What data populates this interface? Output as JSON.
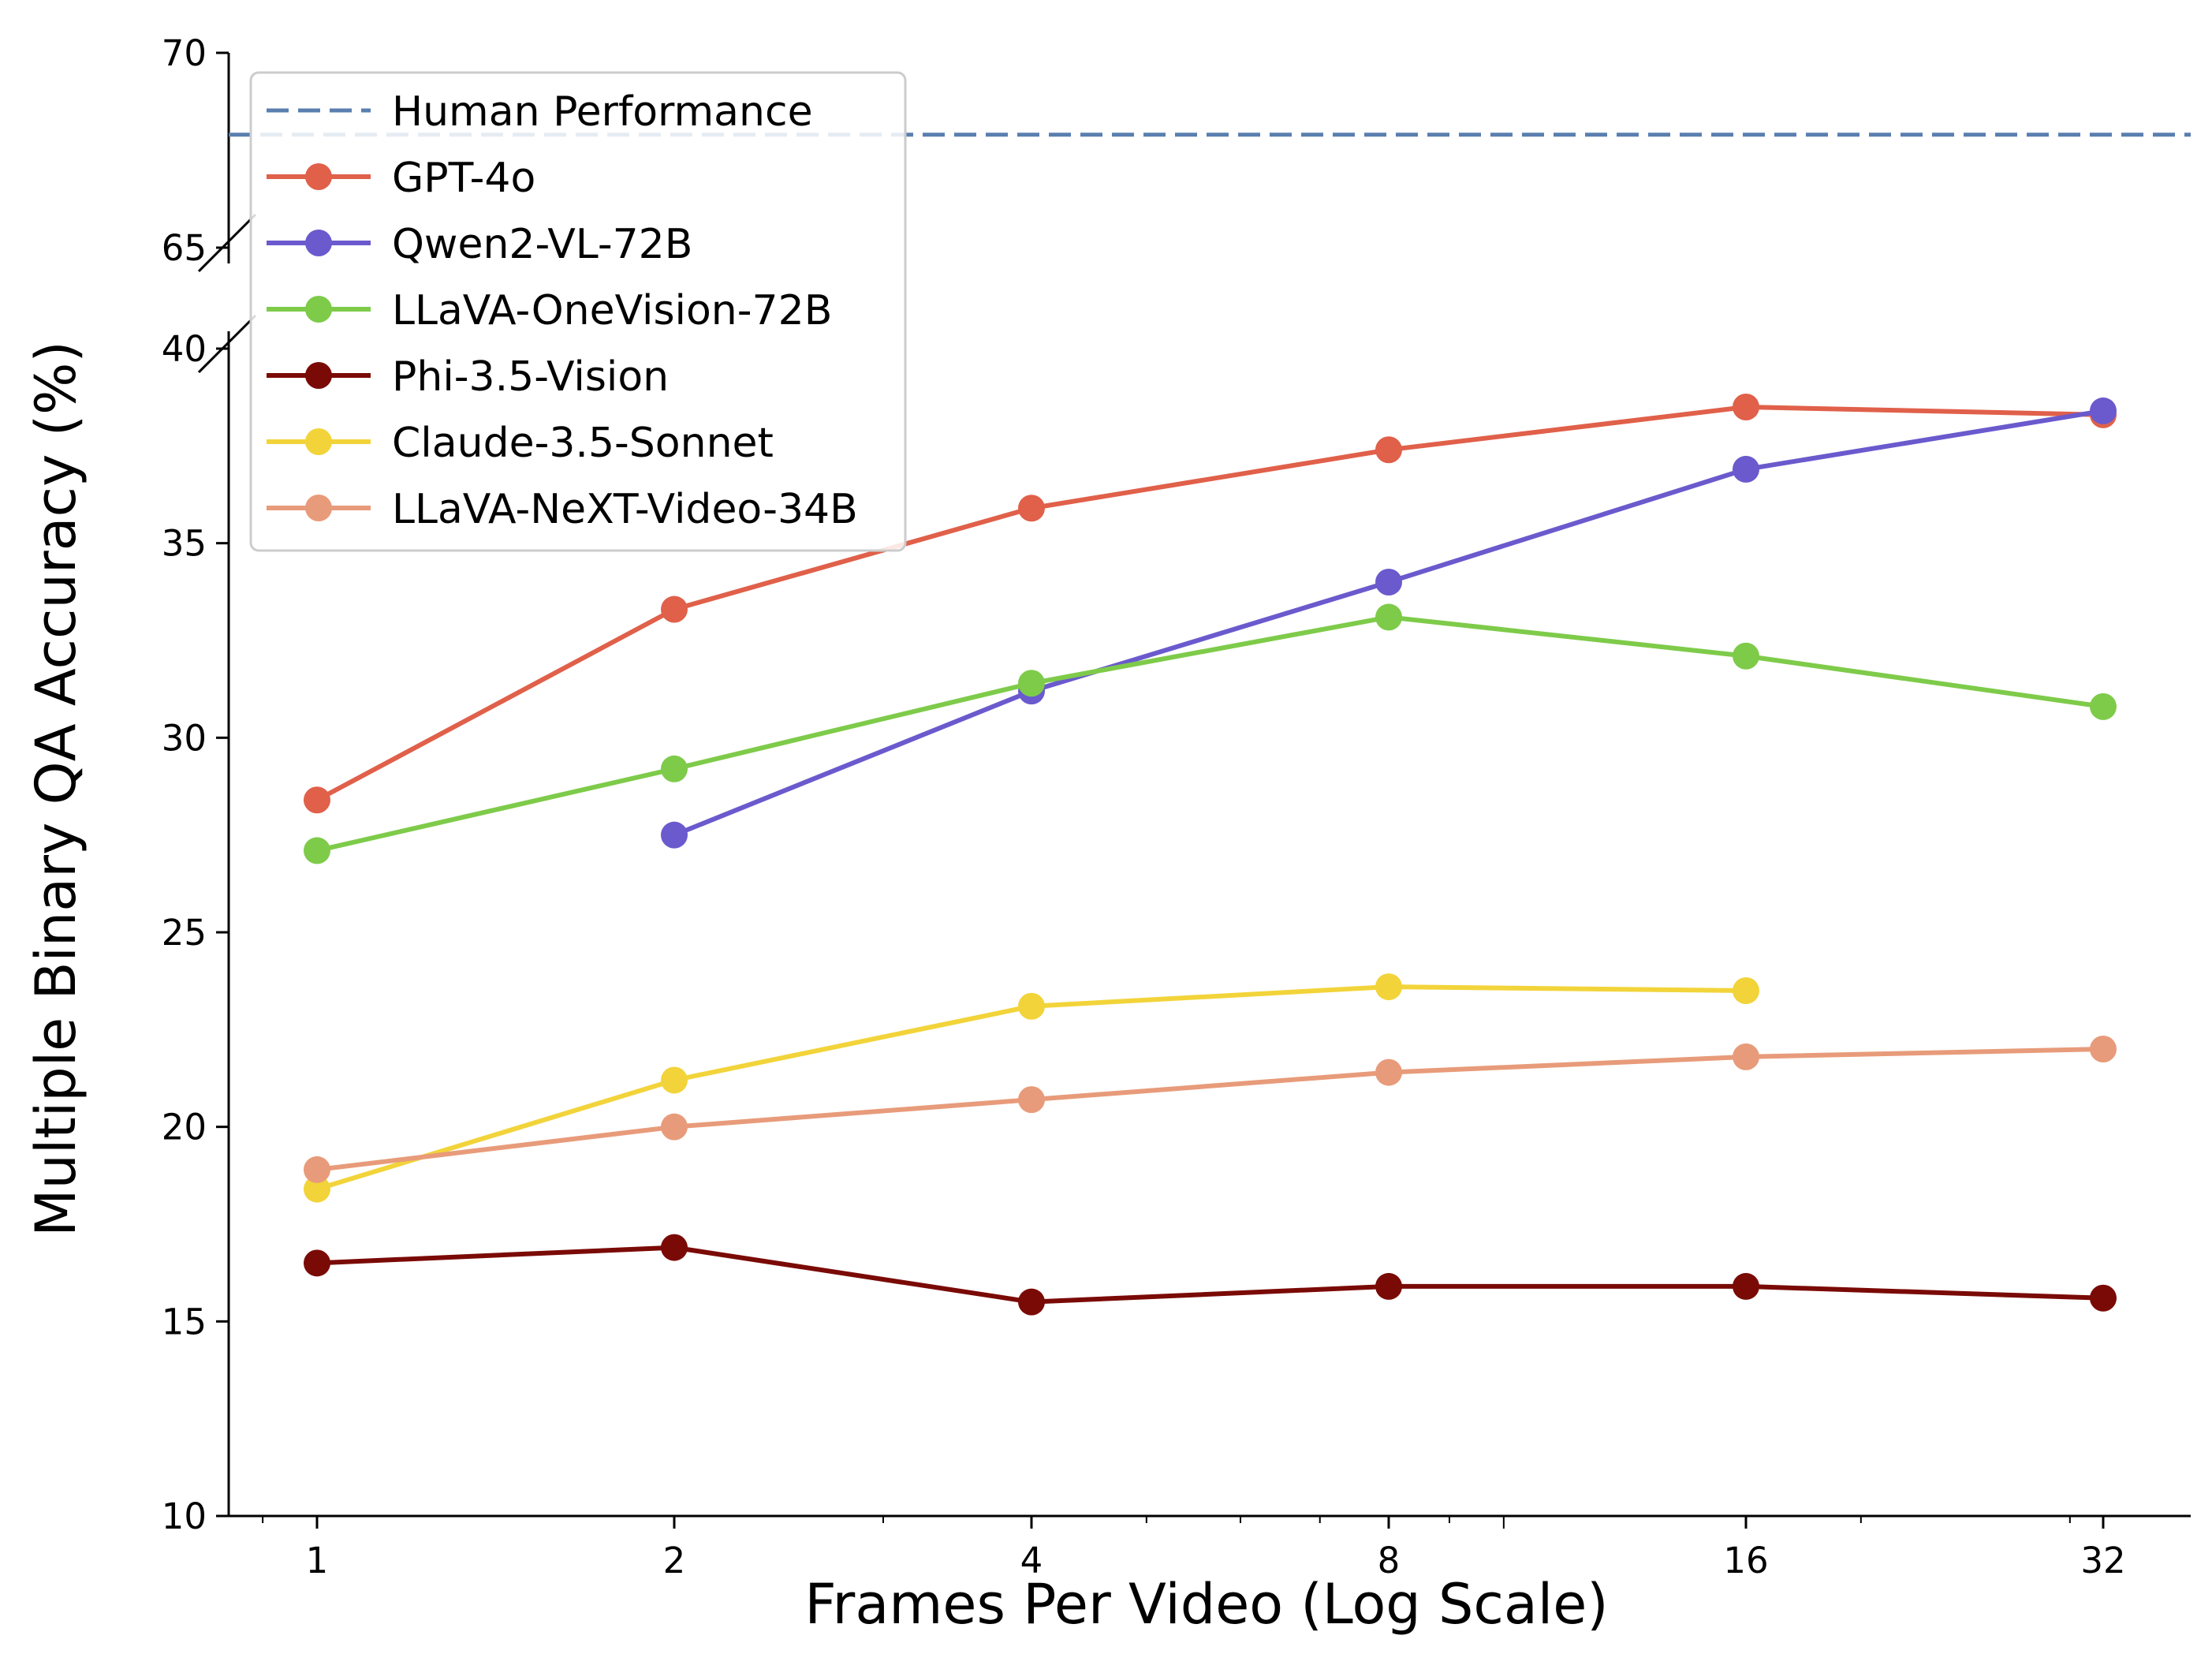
{
  "chart_data": {
    "type": "line",
    "xlabel": "Frames Per Video (Log Scale)",
    "ylabel": "Multiple Binary QA Accuracy (%)",
    "x_scale": "log2",
    "x_ticks": [
      1,
      2,
      4,
      8,
      16,
      32
    ],
    "x_tick_labels": [
      "1",
      "2",
      "4",
      "8",
      "16",
      "32"
    ],
    "xlim": [
      0.85,
      40
    ],
    "y_axis_break": {
      "lower_range": [
        10,
        40
      ],
      "upper_range": [
        65,
        70
      ]
    },
    "y_ticks": [
      10,
      15,
      20,
      25,
      30,
      35,
      40,
      65,
      70
    ],
    "y_tick_labels": [
      "10",
      "15",
      "20",
      "25",
      "30",
      "35",
      "40",
      "65",
      "70"
    ],
    "grid": false,
    "legend_position": "upper-left",
    "reference_line": {
      "name": "Human Performance",
      "value": 67.9,
      "color": "#5a7faf",
      "style": "dashed"
    },
    "series": [
      {
        "name": "GPT-4o",
        "color": "#e0604a",
        "x": [
          1,
          2,
          4,
          8,
          16,
          32
        ],
        "y": [
          28.4,
          33.3,
          35.9,
          37.4,
          38.5,
          38.3
        ]
      },
      {
        "name": "Qwen2-VL-72B",
        "color": "#6a5acd",
        "x": [
          2,
          4,
          8,
          16,
          32
        ],
        "y": [
          27.5,
          31.2,
          34.0,
          36.9,
          38.4
        ]
      },
      {
        "name": "LLaVA-OneVision-72B",
        "color": "#7ecb4a",
        "x": [
          1,
          2,
          4,
          8,
          16,
          32
        ],
        "y": [
          27.1,
          29.2,
          31.4,
          33.1,
          32.1,
          30.8
        ]
      },
      {
        "name": "Phi-3.5-Vision",
        "color": "#7a0a06",
        "x": [
          1,
          2,
          4,
          8,
          16,
          32
        ],
        "y": [
          16.5,
          16.9,
          15.5,
          15.9,
          15.9,
          15.6
        ]
      },
      {
        "name": "Claude-3.5-Sonnet",
        "color": "#f2d43a",
        "x": [
          1,
          2,
          4,
          8,
          16
        ],
        "y": [
          18.4,
          21.2,
          23.1,
          23.6,
          23.5
        ]
      },
      {
        "name": "LLaVA-NeXT-Video-34B",
        "color": "#e89b7a",
        "x": [
          1,
          2,
          4,
          8,
          16,
          32
        ],
        "y": [
          18.9,
          20.0,
          20.7,
          21.4,
          21.8,
          22.0
        ]
      }
    ]
  }
}
